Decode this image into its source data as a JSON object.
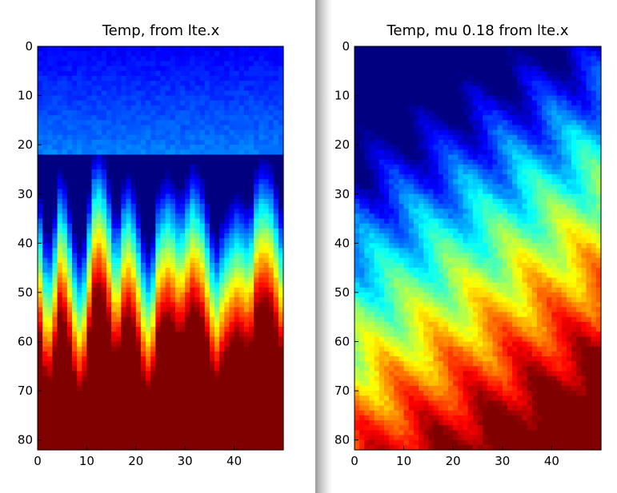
{
  "chart_data": [
    {
      "type": "heatmap",
      "title": "Temp, from lte.x",
      "colormap": "jet",
      "xlim": [
        0,
        50
      ],
      "ylim": [
        82,
        0
      ],
      "x_ticks": [
        "0",
        "10",
        "20",
        "30",
        "40"
      ],
      "y_ticks": [
        "0",
        "10",
        "20",
        "30",
        "40",
        "50",
        "60",
        "70",
        "80"
      ],
      "grid": false,
      "pattern": "vertical_fingers"
    },
    {
      "type": "heatmap",
      "title": "Temp, mu 0.18 from lte.x",
      "colormap": "jet",
      "xlim": [
        0,
        50
      ],
      "ylim": [
        82,
        0
      ],
      "x_ticks": [
        "0",
        "10",
        "20",
        "30",
        "40"
      ],
      "y_ticks": [
        "0",
        "10",
        "20",
        "30",
        "40",
        "50",
        "60",
        "70",
        "80"
      ],
      "grid": false,
      "pattern": "slanted_streaks"
    }
  ]
}
